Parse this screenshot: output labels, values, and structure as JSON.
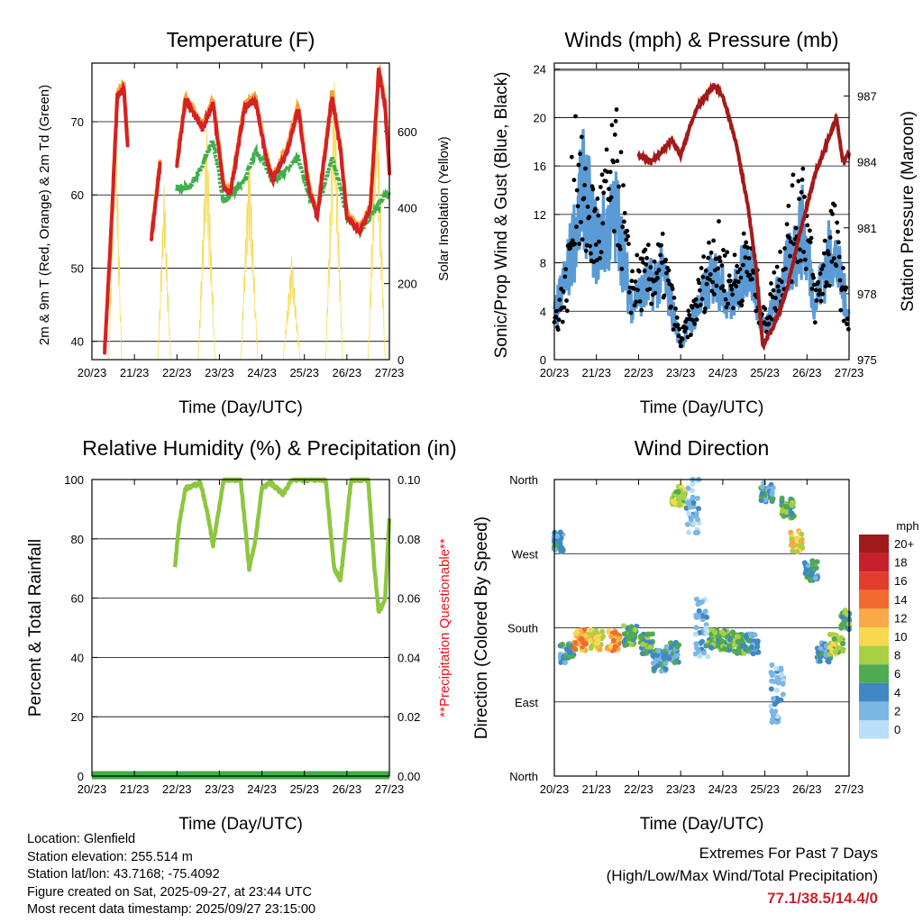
{
  "days": [
    "20/23",
    "21/23",
    "22/23",
    "23/23",
    "24/23",
    "25/23",
    "26/23",
    "27/23"
  ],
  "xlabel": "Time (Day/UTC)",
  "temperature": {
    "title": "Temperature (F)",
    "ylabel_left": "2m & 9m T (Red, Orange) & 2m Td (Green)",
    "ylabel_right": "Solar Insolation (Yellow)",
    "left_ticks": [
      "40",
      "50",
      "60",
      "70"
    ],
    "right_ticks": [
      "0",
      "200",
      "400",
      "600"
    ],
    "colors": {
      "t2m": "#d62024",
      "t9m": "#f4a23a",
      "td": "#3fae49",
      "solar": "#f7dc5a"
    }
  },
  "winds": {
    "title": "Winds (mph) & Pressure (mb)",
    "ylabel_left": "Sonic/Prop Wind & Gust (Blue, Black)",
    "ylabel_right": "Station Pressure (Maroon)",
    "left_ticks": [
      "0",
      "4",
      "8",
      "12",
      "16",
      "20",
      "24"
    ],
    "right_ticks": [
      "975",
      "978",
      "981",
      "984",
      "987"
    ],
    "colors": {
      "wind": "#5b9bd5",
      "gust": "#000000",
      "pressure": "#a31a1a"
    }
  },
  "humidity": {
    "title": "Relative Humidity (%) & Precipitation (in)",
    "ylabel_left": "Percent & Total Rainfall",
    "ylabel_right": "**Precipitation Questionable**",
    "left_ticks": [
      "0",
      "20",
      "40",
      "60",
      "80",
      "100"
    ],
    "right_ticks": [
      "0.00",
      "0.02",
      "0.04",
      "0.06",
      "0.08",
      "0.10"
    ],
    "colors": {
      "rh": "#8dc63f",
      "precip": "#3fae49",
      "note": "#e8141c"
    }
  },
  "direction": {
    "title": "Wind Direction",
    "ylabel": "Direction (Colored By Speed)",
    "dir_ticks": [
      "North",
      "East",
      "South",
      "West",
      "North"
    ],
    "legend_title": "mph",
    "legend_labels": [
      "20+",
      "18",
      "16",
      "14",
      "12",
      "10",
      "8",
      "6",
      "4",
      "2",
      "0"
    ],
    "legend_colors": [
      "#9e1a1d",
      "#c8202b",
      "#e33d2e",
      "#f26a30",
      "#f9a947",
      "#f7d84e",
      "#a9cf45",
      "#4faa52",
      "#3f88c5",
      "#7cb6e3",
      "#b9def5"
    ]
  },
  "station": {
    "location": "Location: Glenfield",
    "elevation": "Station elevation: 255.514 m",
    "latlon": "Station lat/lon: 43.7168; -75.4092",
    "created": "Figure created on Sat, 2025-09-27, at 23:44 UTC",
    "recent": "Most recent data timestamp: 2025/09/27 23:15:00"
  },
  "extremes": {
    "heading": "Extremes For Past 7 Days",
    "subheading": "(High/Low/Max Wind/Total Precipitation)",
    "values": "77.1/38.5/14.4/0"
  },
  "chart_data": [
    {
      "type": "line",
      "title": "Temperature (F)",
      "xlabel": "Time (Day/UTC)",
      "categories": [
        "20/23",
        "21/23",
        "22/23",
        "23/23",
        "24/23",
        "25/23",
        "26/23",
        "27/23"
      ],
      "ylim": [
        37.5,
        78
      ],
      "y2lim": [
        0,
        780
      ],
      "series": [
        {
          "name": "2m T",
          "x": [
            0.3,
            0.45,
            0.6,
            0.75,
            0.85,
            1.4,
            1.6,
            2.0,
            2.2,
            2.6,
            2.85,
            3.1,
            3.25,
            3.6,
            3.85,
            4.1,
            4.25,
            4.6,
            4.85,
            5.1,
            5.3,
            5.65,
            5.85,
            6.0,
            6.3,
            6.55,
            6.75,
            6.9,
            7.0
          ],
          "values": [
            38.5,
            55,
            73.5,
            74.5,
            66,
            54,
            64,
            64,
            73,
            69,
            72.5,
            61,
            60,
            72,
            73,
            65,
            62,
            66,
            72,
            61,
            57,
            73.5,
            66,
            57,
            55,
            58,
            77,
            72,
            63
          ]
        },
        {
          "name": "2m Td",
          "x": [
            2.0,
            2.3,
            2.6,
            2.85,
            3.1,
            3.25,
            3.6,
            3.85,
            4.1,
            4.25,
            4.6,
            4.85,
            5.1,
            5.3,
            5.65,
            5.85,
            6.0,
            6.3,
            6.55,
            6.75,
            6.9,
            7.0
          ],
          "values": [
            61,
            61,
            64,
            67.5,
            59,
            60,
            62,
            66,
            64,
            62,
            63.5,
            65,
            60,
            58,
            65,
            61,
            57,
            55,
            57,
            58.5,
            60,
            60
          ]
        },
        {
          "name": "Solar Insolation",
          "axis": "right",
          "x": [
            0.4,
            0.55,
            0.7,
            1.0,
            1.55,
            1.7,
            1.85,
            2.2,
            2.5,
            2.7,
            2.9,
            3.2,
            3.5,
            3.7,
            3.9,
            4.2,
            4.5,
            4.7,
            4.9,
            5.2,
            5.5,
            5.7,
            5.9,
            6.2,
            6.5,
            6.7,
            6.9
          ],
          "values": [
            0,
            720,
            0,
            0,
            0,
            480,
            0,
            0,
            0,
            620,
            0,
            0,
            0,
            560,
            0,
            0,
            0,
            280,
            0,
            0,
            0,
            760,
            0,
            0,
            0,
            750,
            0
          ]
        }
      ]
    },
    {
      "type": "line",
      "title": "Winds (mph) & Pressure (mb)",
      "xlabel": "Time (Day/UTC)",
      "categories": [
        "20/23",
        "21/23",
        "22/23",
        "23/23",
        "24/23",
        "25/23",
        "26/23",
        "27/23"
      ],
      "ylim": [
        0,
        24.5
      ],
      "y2lim": [
        975,
        988.5
      ],
      "series": [
        {
          "name": "Wind",
          "x": [
            0,
            0.3,
            0.7,
            1.0,
            1.5,
            1.8,
            2.2,
            2.6,
            3.0,
            3.3,
            3.8,
            4.2,
            4.6,
            5.0,
            5.5,
            5.9,
            6.2,
            6.6,
            7.0
          ],
          "values": [
            3,
            6,
            12,
            8,
            10,
            4,
            5,
            6,
            1,
            3,
            6,
            4,
            7,
            2,
            6,
            9,
            4,
            8,
            3
          ]
        },
        {
          "name": "Gust",
          "x": [
            0,
            0.3,
            0.5,
            0.7,
            1.0,
            1.3,
            1.5,
            1.8,
            2.2,
            2.6,
            3.0,
            3.3,
            3.8,
            4.2,
            4.6,
            5.0,
            5.5,
            5.9,
            6.2,
            6.6,
            7.0
          ],
          "values": [
            4,
            8,
            22,
            16,
            14,
            18,
            20,
            8,
            9,
            10,
            2,
            5,
            12,
            8,
            11,
            4,
            12,
            18,
            6,
            14,
            4
          ]
        },
        {
          "name": "Station Pressure",
          "axis": "right",
          "x": [
            2.0,
            2.3,
            2.55,
            2.8,
            3.0,
            3.2,
            3.4,
            3.6,
            3.8,
            4.0,
            4.3,
            4.6,
            4.8,
            4.95,
            5.2,
            5.5,
            5.8,
            6.0,
            6.2,
            6.5,
            6.7,
            6.85,
            7.0
          ],
          "values": [
            984.3,
            984.0,
            984.5,
            985.0,
            984.3,
            985.5,
            986.5,
            987.0,
            987.5,
            987.0,
            985.0,
            982.0,
            979.0,
            975.6,
            976.5,
            978.0,
            980.5,
            982.0,
            983.5,
            985.0,
            986.0,
            984.0,
            984.4
          ]
        }
      ]
    },
    {
      "type": "line",
      "title": "Relative Humidity (%) & Precipitation (in)",
      "xlabel": "Time (Day/UTC)",
      "categories": [
        "20/23",
        "21/23",
        "22/23",
        "23/23",
        "24/23",
        "25/23",
        "26/23",
        "27/23"
      ],
      "ylim": [
        0,
        100
      ],
      "y2lim": [
        0,
        0.1
      ],
      "series": [
        {
          "name": "Relative Humidity",
          "x": [
            1.95,
            2.05,
            2.2,
            2.4,
            2.55,
            2.7,
            2.85,
            3.1,
            3.5,
            3.7,
            3.85,
            4.0,
            4.2,
            4.5,
            4.7,
            5.0,
            5.5,
            5.7,
            5.85,
            6.1,
            6.5,
            6.65,
            6.75,
            6.9,
            7.0
          ],
          "values": [
            70,
            85,
            97,
            98,
            99,
            90,
            78,
            100,
            100,
            70,
            80,
            97,
            99,
            95,
            100,
            100,
            100,
            70,
            66,
            100,
            100,
            70,
            55,
            60,
            87
          ]
        },
        {
          "name": "Total Precipitation",
          "axis": "right",
          "x": [
            0,
            7
          ],
          "values": [
            0,
            0
          ]
        }
      ]
    },
    {
      "type": "scatter",
      "title": "Wind Direction",
      "xlabel": "Time (Day/UTC)",
      "ylabel": "Direction (Colored By Speed)",
      "categories": [
        "20/23",
        "21/23",
        "22/23",
        "23/23",
        "24/23",
        "25/23",
        "26/23",
        "27/23"
      ],
      "ylim": [
        0,
        360
      ],
      "y_ticks": [
        "North",
        "East",
        "South",
        "West",
        "North"
      ],
      "clusters": [
        {
          "x": 0.05,
          "dir": 285,
          "speed": 4
        },
        {
          "x": 0.3,
          "dir": 150,
          "speed": 4
        },
        {
          "x": 0.6,
          "dir": 165,
          "speed": 12
        },
        {
          "x": 1.0,
          "dir": 165,
          "speed": 10
        },
        {
          "x": 1.4,
          "dir": 165,
          "speed": 12
        },
        {
          "x": 1.8,
          "dir": 170,
          "speed": 6
        },
        {
          "x": 2.2,
          "dir": 160,
          "speed": 6
        },
        {
          "x": 2.5,
          "dir": 140,
          "speed": 4
        },
        {
          "x": 2.8,
          "dir": 150,
          "speed": 4
        },
        {
          "x": 2.95,
          "dir": 340,
          "speed": 8
        },
        {
          "x": 3.3,
          "dir": 330,
          "speed": 2
        },
        {
          "x": 3.5,
          "dir": 180,
          "speed": 2
        },
        {
          "x": 3.8,
          "dir": 165,
          "speed": 6
        },
        {
          "x": 4.1,
          "dir": 165,
          "speed": 6
        },
        {
          "x": 4.4,
          "dir": 160,
          "speed": 6
        },
        {
          "x": 4.7,
          "dir": 160,
          "speed": 4
        },
        {
          "x": 5.05,
          "dir": 345,
          "speed": 4
        },
        {
          "x": 5.3,
          "dir": 100,
          "speed": 2
        },
        {
          "x": 5.55,
          "dir": 325,
          "speed": 6
        },
        {
          "x": 5.75,
          "dir": 285,
          "speed": 10
        },
        {
          "x": 6.1,
          "dir": 250,
          "speed": 4
        },
        {
          "x": 6.4,
          "dir": 150,
          "speed": 4
        },
        {
          "x": 6.7,
          "dir": 160,
          "speed": 8
        },
        {
          "x": 6.95,
          "dir": 190,
          "speed": 6
        }
      ]
    }
  ]
}
